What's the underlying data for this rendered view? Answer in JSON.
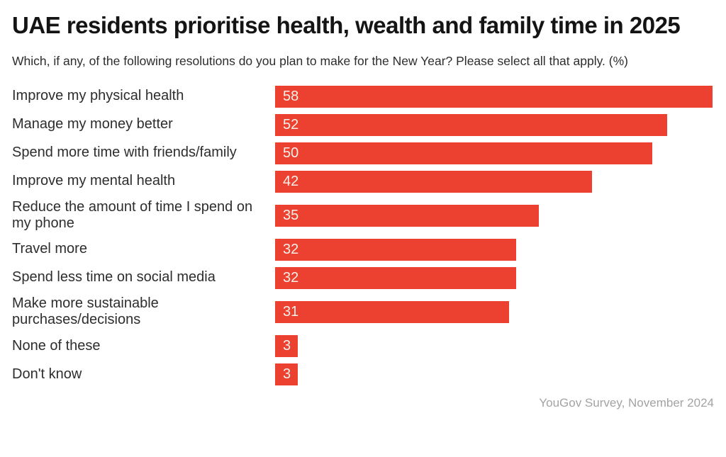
{
  "page": {
    "title": "UAE residents prioritise health, wealth and family time in 2025",
    "subtitle": "Which, if any, of the following resolutions do you plan to make for the New Year? Please select all that apply. (%)",
    "footer": "YouGov Survey, November 2024"
  },
  "colors": {
    "bar": "#EC4130",
    "bar_label": "#F6F1E9",
    "title": "#141414",
    "text": "#2D2D2D",
    "footer": "#A3A3A3",
    "background": "#FFFFFF"
  },
  "chart_data": {
    "type": "bar",
    "orientation": "horizontal",
    "title": "UAE residents prioritise health, wealth and family time in 2025",
    "subtitle": "Which, if any, of the following resolutions do you plan to make for the New Year? Please select all that apply. (%)",
    "categories": [
      "Improve my physical health",
      "Manage my money better",
      "Spend more time with friends/family",
      "Improve my mental health",
      "Reduce the amount of time I spend on my phone",
      "Travel more",
      "Spend less time on social media",
      "Make more sustainable purchases/decisions",
      "None of these",
      "Don't know"
    ],
    "values": [
      58,
      52,
      50,
      42,
      35,
      32,
      32,
      31,
      3,
      3
    ],
    "value_labels_shown": true,
    "xlim": [
      0,
      58.2
    ],
    "grid": false,
    "legend": false,
    "source": "YouGov Survey, November 2024"
  }
}
